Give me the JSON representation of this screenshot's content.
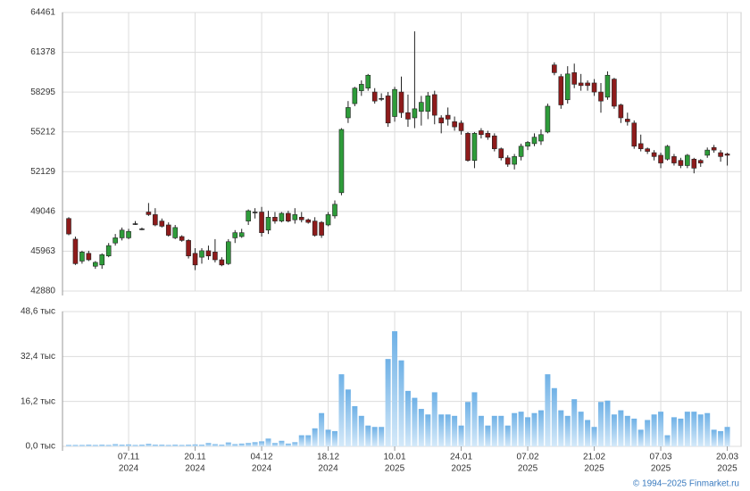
{
  "chart_data": [
    {
      "type": "candlestick",
      "open": [
        48500,
        46900,
        45200,
        45800,
        44800,
        44900,
        45600,
        46600,
        47000,
        47000,
        48100,
        47700,
        49000,
        48800,
        48300,
        48000,
        47000,
        47100,
        46800,
        45800,
        45500,
        46000,
        45900,
        45300,
        45000,
        47000,
        47100,
        48300,
        49000,
        49000,
        47600,
        48600,
        48300,
        48900,
        48400,
        48600,
        48400,
        48300,
        48200,
        48000,
        48700,
        50500,
        56300,
        57400,
        58400,
        58600,
        58300,
        57800,
        58000,
        56400,
        58300,
        56700,
        56300,
        56800,
        56800,
        58100,
        56300,
        56500,
        56000,
        55900,
        55100,
        53000,
        55300,
        55100,
        54900,
        53900,
        53200,
        52700,
        53300,
        54100,
        54300,
        54500,
        55200,
        60400,
        59500,
        57700,
        59800,
        59000,
        59000,
        59000,
        58300,
        57900,
        59300,
        57300,
        56200,
        55900,
        54300,
        53900,
        53600,
        53400,
        53100,
        53300,
        53000,
        52600,
        53100,
        53000,
        53400,
        54000,
        53600,
        53500
      ],
      "high": [
        48600,
        47100,
        46000,
        46000,
        45200,
        45800,
        46600,
        47300,
        47800,
        47700,
        48300,
        47800,
        49700,
        49300,
        48500,
        48200,
        48000,
        47200,
        46900,
        46200,
        46200,
        46400,
        46900,
        45500,
        46900,
        47600,
        47700,
        49200,
        49300,
        49400,
        49100,
        49000,
        49000,
        49100,
        49300,
        49000,
        48500,
        48600,
        48300,
        49000,
        49900,
        55500,
        57600,
        58700,
        59200,
        59700,
        58600,
        58200,
        58300,
        58700,
        59500,
        58100,
        63000,
        58000,
        58300,
        58400,
        56500,
        57100,
        56400,
        56100,
        55200,
        55200,
        55500,
        55300,
        55100,
        54000,
        53400,
        53500,
        54300,
        54500,
        55100,
        55400,
        57400,
        60600,
        59700,
        60300,
        60500,
        59700,
        59200,
        59300,
        59000,
        59900,
        59400,
        57400,
        56700,
        56100,
        55000,
        54000,
        53800,
        53600,
        54200,
        53500,
        53200,
        53500,
        53200,
        53100,
        54000,
        54200,
        53800,
        53600
      ],
      "low": [
        47200,
        44900,
        45000,
        45200,
        44600,
        44600,
        45500,
        46400,
        46800,
        46900,
        48000,
        47600,
        48700,
        47900,
        47800,
        47100,
        46900,
        46700,
        45400,
        44500,
        45000,
        45300,
        45100,
        44800,
        44900,
        46600,
        47000,
        48000,
        48500,
        47100,
        47300,
        48100,
        48200,
        48200,
        48100,
        48200,
        48100,
        47100,
        47000,
        47900,
        48500,
        50300,
        55900,
        57200,
        58000,
        58400,
        57400,
        57600,
        55600,
        56000,
        56300,
        55600,
        55500,
        55700,
        56200,
        55800,
        55100,
        55700,
        55300,
        55000,
        52900,
        52400,
        54700,
        54600,
        53700,
        53000,
        52500,
        52300,
        53000,
        53800,
        54100,
        54200,
        55100,
        59600,
        57000,
        57400,
        58600,
        58400,
        58400,
        58000,
        56700,
        57700,
        57000,
        55900,
        55700,
        53900,
        53700,
        53500,
        53000,
        52400,
        53000,
        52600,
        52400,
        52400,
        52000,
        52500,
        53200,
        53600,
        52900,
        52600
      ],
      "close": [
        47300,
        45000,
        45900,
        45300,
        45100,
        45700,
        46400,
        47000,
        47600,
        47500,
        48100,
        47700,
        48800,
        48000,
        47900,
        47200,
        47800,
        46800,
        45600,
        44900,
        46000,
        45600,
        45300,
        44900,
        46700,
        47400,
        47400,
        49100,
        49000,
        47400,
        48600,
        48300,
        48900,
        48300,
        48800,
        48400,
        48200,
        47200,
        47200,
        48800,
        49600,
        55400,
        57100,
        58600,
        58900,
        59600,
        57600,
        57800,
        55900,
        58500,
        56700,
        56200,
        57000,
        57500,
        58000,
        56500,
        55900,
        56200,
        55600,
        55300,
        53000,
        55100,
        55000,
        54800,
        53900,
        53200,
        52700,
        53300,
        54100,
        54400,
        54800,
        55000,
        57200,
        59800,
        57300,
        59700,
        58900,
        58800,
        58800,
        58300,
        57600,
        59600,
        57200,
        56300,
        56000,
        54100,
        53900,
        53700,
        53300,
        52800,
        54100,
        52800,
        52600,
        53400,
        52400,
        52800,
        53800,
        53800,
        53300,
        53400
      ],
      "up_color": "#2e9c3a",
      "down_color": "#8e1b1b",
      "ylim": [
        42880,
        64461
      ],
      "yticks": [
        42880,
        45963,
        49046,
        52129,
        55212,
        58295,
        61378,
        64461
      ],
      "grid": true
    },
    {
      "type": "bar",
      "values": [
        0.5,
        0.5,
        0.5,
        0.6,
        0.5,
        0.6,
        0.5,
        0.8,
        0.6,
        0.7,
        0.5,
        0.6,
        0.9,
        0.6,
        0.6,
        0.5,
        0.6,
        0.5,
        0.6,
        0.7,
        0.6,
        1.2,
        0.8,
        0.6,
        1.4,
        0.8,
        1,
        1.2,
        1.5,
        1.8,
        2.8,
        1.2,
        2,
        1,
        1.5,
        4,
        4,
        6.5,
        12,
        6,
        5.5,
        26,
        20.5,
        14.5,
        11,
        7.5,
        7,
        7,
        31.5,
        41.5,
        31,
        20,
        17.5,
        13.5,
        11.5,
        19.5,
        11.5,
        11.5,
        11,
        7.5,
        16,
        19.5,
        11,
        7.5,
        11,
        11,
        7.5,
        12,
        12.5,
        10.5,
        12,
        13,
        26,
        21,
        13,
        11,
        17,
        12.5,
        9.5,
        7,
        16,
        16.5,
        11.5,
        13,
        11,
        10,
        6,
        9.5,
        11.5,
        12.5,
        4,
        10.5,
        10,
        12.5,
        12.5,
        11.5,
        12,
        6,
        5.5,
        7
      ],
      "color": "#7ab6e6",
      "categories": [
        null,
        null,
        null,
        null,
        null,
        null,
        null,
        null,
        null,
        [
          "07.11",
          "2024"
        ],
        null,
        null,
        null,
        null,
        null,
        null,
        null,
        null,
        null,
        [
          "20.11",
          "2024"
        ],
        null,
        null,
        null,
        null,
        null,
        null,
        null,
        null,
        null,
        [
          "04.12",
          "2024"
        ],
        null,
        null,
        null,
        null,
        null,
        null,
        null,
        null,
        null,
        [
          "18.12",
          "2024"
        ],
        null,
        null,
        null,
        null,
        null,
        null,
        null,
        null,
        null,
        [
          "10.01",
          "2025"
        ],
        null,
        null,
        null,
        null,
        null,
        null,
        null,
        null,
        null,
        [
          "24.01",
          "2025"
        ],
        null,
        null,
        null,
        null,
        null,
        null,
        null,
        null,
        null,
        [
          "07.02",
          "2025"
        ],
        null,
        null,
        null,
        null,
        null,
        null,
        null,
        null,
        null,
        [
          "21.02",
          "2025"
        ],
        null,
        null,
        null,
        null,
        null,
        null,
        null,
        null,
        null,
        [
          "07.03",
          "2025"
        ],
        null,
        null,
        null,
        null,
        null,
        null,
        null,
        null,
        null,
        [
          "20.03",
          "2025"
        ]
      ],
      "ylim": [
        0,
        48.6
      ],
      "yticks": [
        {
          "value": 0,
          "label": "0,0 тыс"
        },
        {
          "value": 16.2,
          "label": "16,2 тыс"
        },
        {
          "value": 32.4,
          "label": "32,4 тыс"
        },
        {
          "value": 48.6,
          "label": "48,6 тыс"
        }
      ],
      "grid": true
    }
  ],
  "footer": "© 1994–2025 Finmarket.ru"
}
